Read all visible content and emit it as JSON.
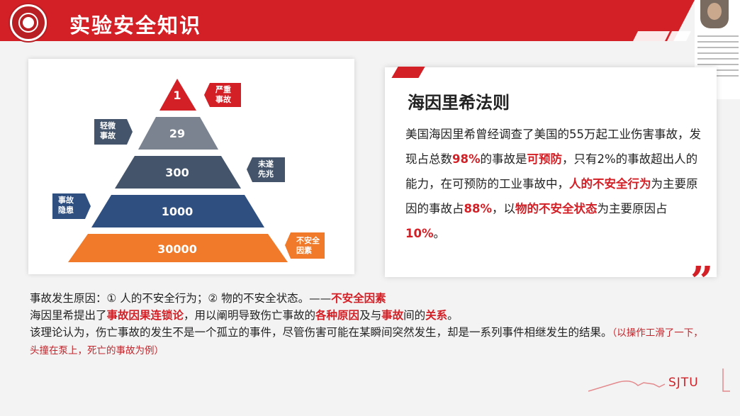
{
  "slide": {
    "title": "实验安全知识",
    "pyramid": {
      "tiers": [
        "1",
        "29",
        "300",
        "1000",
        "30000"
      ],
      "tags": {
        "serious": "严重\n事故",
        "minor": "轻微\n事故",
        "near_miss": "未遂\n先兆",
        "hazard": "事故\n隐患",
        "unsafe_factor": "不安全\n因素"
      },
      "colors": {
        "red": "#d31f26",
        "gray": "#7b8391",
        "slate": "#44546a",
        "navy": "#2f4f80",
        "orange": "#f07a29"
      }
    },
    "card": {
      "title": "海因里希法则",
      "body_parts": [
        {
          "t": "美国海因里希曾经调查了美国的55万起工业伤害事故，发现占总数",
          "red": false
        },
        {
          "t": "98%",
          "red": true
        },
        {
          "t": "的事故是",
          "red": false
        },
        {
          "t": "可预防",
          "red": true
        },
        {
          "t": "，只有2%的事故超出人的能力，在可预防的工业事故中，",
          "red": false
        },
        {
          "t": "人的不安全行为",
          "red": true
        },
        {
          "t": "为主要原因的事故占",
          "red": false
        },
        {
          "t": "88%",
          "red": true
        },
        {
          "t": "，以",
          "red": false
        },
        {
          "t": "物的不安全状态",
          "red": true
        },
        {
          "t": "为主要原因占",
          "red": false
        },
        {
          "t": "10%",
          "red": true
        },
        {
          "t": "。",
          "red": false
        }
      ]
    },
    "bottom": {
      "line1_a": "事故发生原因：① 人的不安全行为；② 物的不安全状态。——",
      "line1_red": "不安全因素",
      "line2_a": "海因里希提出了",
      "line2_red1": "事故因果连锁论",
      "line2_b": "，用以阐明导致伤亡事故的",
      "line2_red2": "各种原因",
      "line2_c": "及与",
      "line2_red3": "事故",
      "line2_d": "间的",
      "line2_red4": "关系",
      "line2_e": "。",
      "line3": "该理论认为，伤亡事故的发生不是一个孤立的事件，尽管伤害可能在某瞬间突然发生，却是一系列事件相继发生的结果。",
      "line3_example": "（以操作工滑了一下，头撞在泵上，死亡的事故为例）"
    },
    "watermark": "SJTU"
  }
}
